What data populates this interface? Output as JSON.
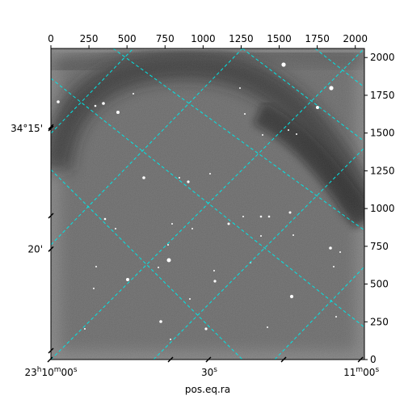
{
  "image": {
    "subject": "astronomical-frame",
    "colormap": "gray",
    "background_color": "#5c5c5c",
    "dark_band_color": "#1e1e1e",
    "star_color": "#ffffff"
  },
  "pixel_axes": {
    "x_ticks": [
      "0",
      "250",
      "500",
      "750",
      "1000",
      "1250",
      "1500",
      "1750",
      "2000"
    ],
    "x_tick_values": [
      0,
      250,
      500,
      750,
      1000,
      1250,
      1500,
      1750,
      2000
    ],
    "x_range": [
      0,
      2060
    ],
    "y_ticks": [
      "0",
      "250",
      "500",
      "750",
      "1000",
      "1250",
      "1500",
      "1750",
      "2000"
    ],
    "y_tick_values": [
      0,
      250,
      500,
      750,
      1000,
      1250,
      1500,
      1750,
      2000
    ],
    "y_range": [
      0,
      2060
    ]
  },
  "world_axes": {
    "ra_labels": [
      {
        "text": "23h10m00s",
        "frac": 0.0
      },
      {
        "text": "30s",
        "frac": 0.505
      },
      {
        "text": "11m00s",
        "frac": 0.99
      }
    ],
    "dec_labels": [
      {
        "text": "34°15'",
        "frac": 0.257
      },
      {
        "text": "20'",
        "frac": 0.645
      }
    ],
    "xlabel": "pos.eq.ra",
    "grid_color": "#00e5e5"
  }
}
